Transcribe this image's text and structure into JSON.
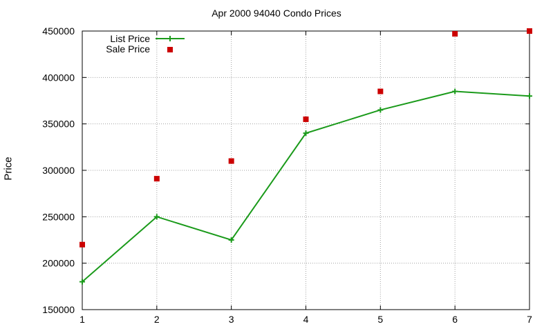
{
  "chart_data": {
    "type": "line",
    "title": "Apr 2000 94040 Condo Prices",
    "xlabel": "",
    "ylabel": "Price",
    "x": [
      1,
      2,
      3,
      4,
      5,
      6,
      7
    ],
    "xlim": [
      1,
      7
    ],
    "ylim": [
      150000,
      450000
    ],
    "x_ticks": [
      "1",
      "2",
      "3",
      "4",
      "5",
      "6",
      "7"
    ],
    "y_ticks": [
      "150000",
      "200000",
      "250000",
      "300000",
      "350000",
      "400000",
      "450000"
    ],
    "grid": true,
    "legend_position": "top-left",
    "series": [
      {
        "name": "List Price",
        "style": "line-with-plus-markers",
        "color": "#1a9a1a",
        "values": [
          180000,
          250000,
          225000,
          340000,
          365000,
          385000,
          380000
        ]
      },
      {
        "name": "Sale Price",
        "style": "square-points",
        "color": "#cc0000",
        "values": [
          220000,
          291000,
          310000,
          355000,
          385000,
          447000,
          450000
        ]
      }
    ]
  }
}
